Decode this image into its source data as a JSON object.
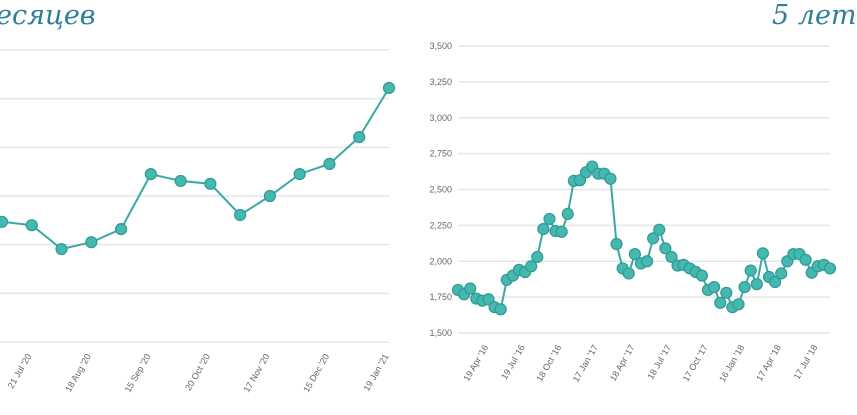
{
  "chart_data": [
    {
      "type": "line",
      "title": "есяцев",
      "xlabel": "",
      "ylabel": "",
      "ylim": [
        0,
        6
      ],
      "grid": true,
      "x_tick_labels": [
        "21 Jul '20",
        "18 Aug '20",
        "15 Sep '20",
        "20 Oct '20",
        "17 Nov '20",
        "15 Dec '20",
        "19 Jan '21"
      ],
      "x_tick_point_index": [
        1,
        3,
        5,
        7,
        9,
        11,
        13
      ],
      "values": [
        2.47,
        2.4,
        1.91,
        2.05,
        2.32,
        3.45,
        3.31,
        3.25,
        2.61,
        3.0,
        3.45,
        3.66,
        4.21,
        5.22
      ],
      "color": "#3aa9a5"
    },
    {
      "type": "line",
      "title": "5 лет",
      "xlabel": "",
      "ylabel": "",
      "ylim": [
        1500,
        3500
      ],
      "y_ticks": [
        "1,500",
        "1,750",
        "2,000",
        "2,250",
        "2,500",
        "2,750",
        "3,000",
        "3,250",
        "3,500"
      ],
      "grid": true,
      "x_tick_labels": [
        "19 Apr '16",
        "19 Jul '16",
        "18 Oct '16",
        "17 Jan '17",
        "18 Apr '17",
        "18 Jul '17",
        "17 Oct '17",
        "16 Jan '18",
        "17 Apr '18",
        "17 Jul '18"
      ],
      "x_tick_point_index": [
        5,
        11,
        17,
        23,
        29,
        35,
        41,
        47,
        53,
        59
      ],
      "values": [
        1800,
        1770,
        1810,
        1740,
        1725,
        1735,
        1680,
        1665,
        1870,
        1900,
        1940,
        1925,
        1965,
        2030,
        2225,
        2295,
        2210,
        2205,
        2330,
        2560,
        2565,
        2620,
        2660,
        2610,
        2610,
        2575,
        2120,
        1950,
        1915,
        2050,
        1985,
        2000,
        2160,
        2220,
        2090,
        2030,
        1970,
        1975,
        1950,
        1925,
        1900,
        1800,
        1820,
        1710,
        1780,
        1680,
        1700,
        1820,
        1935,
        1840,
        2055,
        1890,
        1855,
        1915,
        2000,
        2050,
        2050,
        2010,
        1920,
        1965,
        1975,
        1950
      ],
      "color": "#3aa9a5"
    }
  ]
}
